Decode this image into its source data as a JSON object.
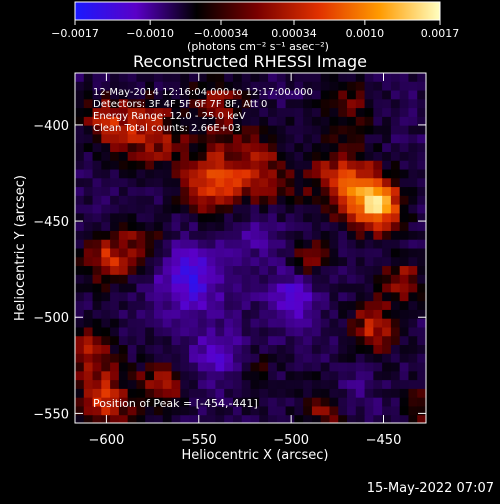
{
  "chart_data": {
    "type": "heatmap",
    "title": "Reconstructed RHESSI Image",
    "xlabel": "Heliocentric X (arcsec)",
    "ylabel": "Heliocentric Y (arcsec)",
    "xlim": [
      -617,
      -427
    ],
    "ylim": [
      -555,
      -373
    ],
    "xticks": [
      {
        "value": -600,
        "label": "−600"
      },
      {
        "value": -550,
        "label": "−550"
      },
      {
        "value": -500,
        "label": "−500"
      },
      {
        "value": -450,
        "label": "−450"
      }
    ],
    "yticks": [
      {
        "value": -400,
        "label": "−400"
      },
      {
        "value": -450,
        "label": "−450"
      },
      {
        "value": -500,
        "label": "−500"
      },
      {
        "value": -550,
        "label": "−550"
      }
    ],
    "colorbar": {
      "range": [
        -0.0017,
        0.0017
      ],
      "ticks": [
        {
          "value": -0.0017,
          "label": "−0.0017"
        },
        {
          "value": -0.001,
          "label": "−0.0010"
        },
        {
          "value": -0.00034,
          "label": "−0.00034"
        },
        {
          "value": 0.00034,
          "label": "0.00034"
        },
        {
          "value": 0.001,
          "label": "0.0010"
        },
        {
          "value": 0.0017,
          "label": "0.0017"
        }
      ],
      "unit_label": "(photons cm⁻² s⁻¹ asec⁻²)",
      "colormap": [
        "#1a1aff",
        "#5a00c8",
        "#000000",
        "#7a0000",
        "#e03000",
        "#ff9a00",
        "#ffffc0"
      ]
    },
    "annotations": [
      "12-May-2014 12:16:04.000 to 12:17:00.000",
      "Detectors: 3F 4F 5F 6F 7F 8F, Att 0",
      "Energy Range: 12.0 - 25.0 keV",
      "Clean     Total counts: 2.66E+03"
    ],
    "peak_label": "Position of Peak = [-454,-441]",
    "peak": {
      "x": -454,
      "y": -441
    }
  },
  "footer_date": "15-May-2022 07:07"
}
